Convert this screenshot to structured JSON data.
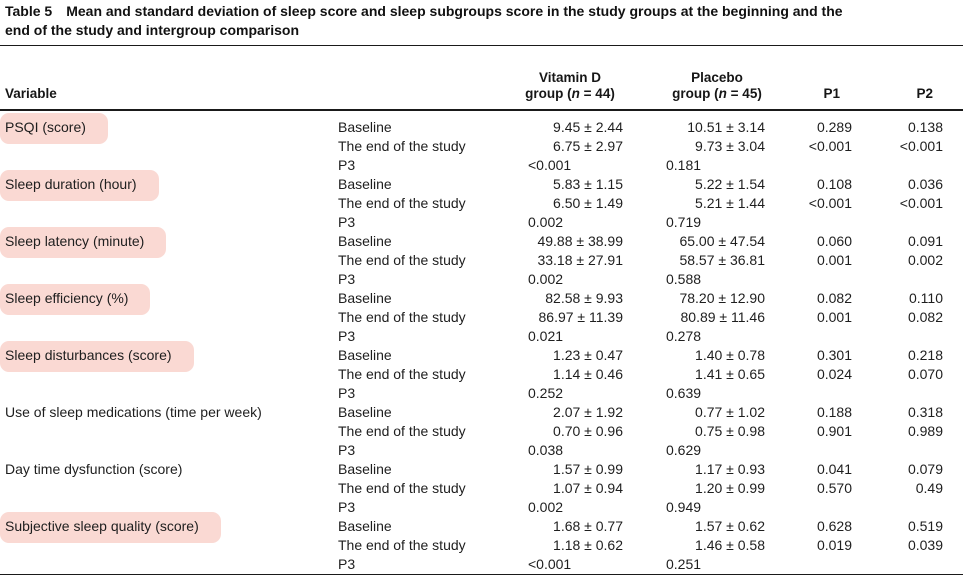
{
  "title": {
    "label": "Table 5",
    "line1": "Mean and standard deviation of sleep score and sleep subgroups score in the study groups at the beginning and the",
    "line2": "end of the study and intergroup comparison"
  },
  "columns": {
    "variable": "Variable",
    "vitamin_d": {
      "line1": "Vitamin D",
      "group_pre": "group (",
      "n": "n",
      "group_post": " = 44)"
    },
    "placebo": {
      "line1": "Placebo",
      "group_pre": "group (",
      "n": "n",
      "group_post": " = 45)"
    },
    "p1": "P1",
    "p2": "P2"
  },
  "highlight_color": "#fad9d3",
  "rows": [
    {
      "variable": "PSQI (score)",
      "highlighted": true,
      "entries": [
        {
          "label": "Baseline",
          "vitamin_d": "9.45 ± 2.44",
          "placebo": "10.51 ± 3.14",
          "p1": "0.289",
          "p2": "0.138"
        },
        {
          "label": "The end of the study",
          "vitamin_d": "6.75 ± 2.97",
          "placebo": "9.73 ± 3.04",
          "p1": "<0.001",
          "p2": "<0.001"
        },
        {
          "label": "P3",
          "vitamin_d": "<0.001",
          "placebo": "0.181",
          "p1": "",
          "p2": ""
        }
      ]
    },
    {
      "variable": "Sleep duration (hour)",
      "highlighted": true,
      "entries": [
        {
          "label": "Baseline",
          "vitamin_d": "5.83 ± 1.15",
          "placebo": "5.22 ± 1.54",
          "p1": "0.108",
          "p2": "0.036"
        },
        {
          "label": "The end of the study",
          "vitamin_d": "6.50 ± 1.49",
          "placebo": "5.21 ± 1.44",
          "p1": "<0.001",
          "p2": "<0.001"
        },
        {
          "label": "P3",
          "vitamin_d": "0.002",
          "placebo": "0.719",
          "p1": "",
          "p2": ""
        }
      ]
    },
    {
      "variable": "Sleep latency (minute)",
      "highlighted": true,
      "entries": [
        {
          "label": "Baseline",
          "vitamin_d": "49.88 ± 38.99",
          "placebo": "65.00 ± 47.54",
          "p1": "0.060",
          "p2": "0.091"
        },
        {
          "label": "The end of the study",
          "vitamin_d": "33.18 ± 27.91",
          "placebo": "58.57 ± 36.81",
          "p1": "0.001",
          "p2": "0.002"
        },
        {
          "label": "P3",
          "vitamin_d": "0.002",
          "placebo": "0.588",
          "p1": "",
          "p2": ""
        }
      ]
    },
    {
      "variable": "Sleep efficiency (%)",
      "highlighted": true,
      "entries": [
        {
          "label": "Baseline",
          "vitamin_d": "82.58 ± 9.93",
          "placebo": "78.20 ± 12.90",
          "p1": "0.082",
          "p2": "0.110"
        },
        {
          "label": "The end of the study",
          "vitamin_d": "86.97 ± 11.39",
          "placebo": "80.89 ± 11.46",
          "p1": "0.001",
          "p2": "0.082"
        },
        {
          "label": "P3",
          "vitamin_d": "0.021",
          "placebo": "0.278",
          "p1": "",
          "p2": ""
        }
      ]
    },
    {
      "variable": "Sleep disturbances (score)",
      "highlighted": true,
      "entries": [
        {
          "label": "Baseline",
          "vitamin_d": "1.23 ± 0.47",
          "placebo": "1.40 ± 0.78",
          "p1": "0.301",
          "p2": "0.218"
        },
        {
          "label": "The end of the study",
          "vitamin_d": "1.14 ± 0.46",
          "placebo": "1.41 ± 0.65",
          "p1": "0.024",
          "p2": "0.070"
        },
        {
          "label": "P3",
          "vitamin_d": "0.252",
          "placebo": "0.639",
          "p1": "",
          "p2": ""
        }
      ]
    },
    {
      "variable": "Use of sleep medications (time per week)",
      "highlighted": false,
      "entries": [
        {
          "label": "Baseline",
          "vitamin_d": "2.07 ± 1.92",
          "placebo": "0.77 ± 1.02",
          "p1": "0.188",
          "p2": "0.318"
        },
        {
          "label": "The end of the study",
          "vitamin_d": "0.70 ± 0.96",
          "placebo": "0.75 ± 0.98",
          "p1": "0.901",
          "p2": "0.989"
        },
        {
          "label": "P3",
          "vitamin_d": "0.038",
          "placebo": "0.629",
          "p1": "",
          "p2": ""
        }
      ]
    },
    {
      "variable": "Day time dysfunction (score)",
      "highlighted": false,
      "entries": [
        {
          "label": "Baseline",
          "vitamin_d": "1.57 ± 0.99",
          "placebo": "1.17 ± 0.93",
          "p1": "0.041",
          "p2": "0.079"
        },
        {
          "label": "The end of the study",
          "vitamin_d": "1.07 ± 0.94",
          "placebo": "1.20 ± 0.99",
          "p1": "0.570",
          "p2": "0.49"
        },
        {
          "label": "P3",
          "vitamin_d": "0.002",
          "placebo": "0.949",
          "p1": "",
          "p2": ""
        }
      ]
    },
    {
      "variable": "Subjective sleep quality (score)",
      "highlighted": true,
      "entries": [
        {
          "label": "Baseline",
          "vitamin_d": "1.68 ± 0.77",
          "placebo": "1.57 ± 0.62",
          "p1": "0.628",
          "p2": "0.519"
        },
        {
          "label": "The end of the study",
          "vitamin_d": "1.18 ± 0.62",
          "placebo": "1.46 ± 0.58",
          "p1": "0.019",
          "p2": "0.039"
        },
        {
          "label": "P3",
          "vitamin_d": "<0.001",
          "placebo": "0.251",
          "p1": "",
          "p2": ""
        }
      ]
    }
  ]
}
